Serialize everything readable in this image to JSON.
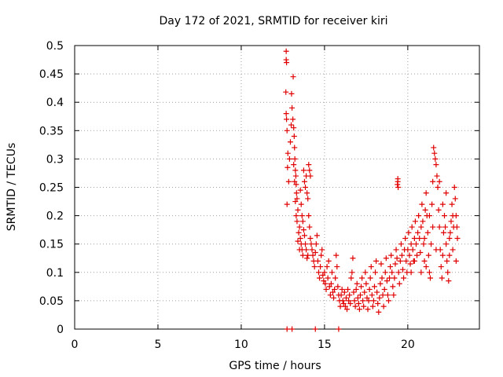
{
  "chart_data": {
    "type": "scatter",
    "title": "Day 172 of 2021, SRMTID for receiver kiri",
    "xlabel": "GPS time / hours",
    "ylabel": "SRMTID / TECUs",
    "xlim": [
      0,
      24.3
    ],
    "ylim": [
      0,
      0.5
    ],
    "x_ticks": [
      0,
      5,
      10,
      15,
      20
    ],
    "x_tick_labels": [
      "0",
      "5",
      "10",
      "15",
      "20"
    ],
    "y_ticks": [
      0,
      0.05,
      0.1,
      0.15,
      0.2,
      0.25,
      0.3,
      0.35,
      0.4,
      0.45,
      0.5
    ],
    "y_tick_labels": [
      "0",
      "0.05",
      "0.1",
      "0.15",
      "0.2",
      "0.25",
      "0.3",
      "0.35",
      "0.4",
      "0.45",
      "0.5"
    ],
    "grid": true,
    "marker": "+",
    "series": [
      {
        "color": "#e00000",
        "points": [
          [
            12.7,
            0.49
          ],
          [
            12.7,
            0.475
          ],
          [
            12.72,
            0.47
          ],
          [
            12.68,
            0.418
          ],
          [
            12.7,
            0.38
          ],
          [
            12.72,
            0.37
          ],
          [
            12.75,
            0.35
          ],
          [
            12.8,
            0.31
          ],
          [
            12.78,
            0.285
          ],
          [
            12.75,
            0.22
          ],
          [
            12.85,
            0.26
          ],
          [
            12.9,
            0.3
          ],
          [
            12.95,
            0.33
          ],
          [
            13.0,
            0.36
          ],
          [
            13.02,
            0.415
          ],
          [
            13.05,
            0.39
          ],
          [
            13.1,
            0.37
          ],
          [
            13.12,
            0.445
          ],
          [
            13.15,
            0.355
          ],
          [
            13.18,
            0.34
          ],
          [
            13.2,
            0.32
          ],
          [
            13.22,
            0.3
          ],
          [
            13.25,
            0.28
          ],
          [
            13.28,
            0.27
          ],
          [
            13.3,
            0.255
          ],
          [
            13.32,
            0.24
          ],
          [
            13.35,
            0.23
          ],
          [
            13.15,
            0.29
          ],
          [
            13.2,
            0.26
          ],
          [
            13.25,
            0.225
          ],
          [
            13.3,
            0.2
          ],
          [
            13.35,
            0.19
          ],
          [
            13.4,
            0.21
          ],
          [
            13.45,
            0.17
          ],
          [
            13.5,
            0.18
          ],
          [
            13.55,
            0.16
          ],
          [
            13.6,
            0.15
          ],
          [
            13.65,
            0.14
          ],
          [
            13.7,
            0.13
          ],
          [
            13.55,
            0.245
          ],
          [
            13.6,
            0.22
          ],
          [
            13.65,
            0.2
          ],
          [
            13.7,
            0.19
          ],
          [
            13.75,
            0.175
          ],
          [
            13.8,
            0.165
          ],
          [
            13.85,
            0.15
          ],
          [
            13.9,
            0.14
          ],
          [
            13.95,
            0.125
          ],
          [
            14.0,
            0.13
          ],
          [
            13.75,
            0.28
          ],
          [
            13.8,
            0.26
          ],
          [
            13.85,
            0.25
          ],
          [
            13.9,
            0.27
          ],
          [
            13.95,
            0.24
          ],
          [
            14.0,
            0.23
          ],
          [
            14.05,
            0.2
          ],
          [
            14.1,
            0.18
          ],
          [
            14.15,
            0.16
          ],
          [
            14.05,
            0.29
          ],
          [
            14.1,
            0.28
          ],
          [
            14.15,
            0.27
          ],
          [
            13.4,
            0.155
          ],
          [
            13.5,
            0.14
          ],
          [
            14.2,
            0.15
          ],
          [
            14.25,
            0.14
          ],
          [
            14.3,
            0.13
          ],
          [
            14.35,
            0.12
          ],
          [
            14.4,
            0.11
          ],
          [
            14.45,
            0.135
          ],
          [
            14.5,
            0.15
          ],
          [
            14.55,
            0.165
          ],
          [
            14.6,
            0.12
          ],
          [
            14.65,
            0.1
          ],
          [
            14.7,
            0.09
          ],
          [
            14.75,
            0.11
          ],
          [
            14.8,
            0.13
          ],
          [
            14.85,
            0.14
          ],
          [
            14.9,
            0.095
          ],
          [
            14.95,
            0.085
          ],
          [
            15.0,
            0.1
          ],
          [
            15.05,
            0.08
          ],
          [
            15.1,
            0.07
          ],
          [
            15.15,
            0.11
          ],
          [
            15.2,
            0.09
          ],
          [
            15.25,
            0.12
          ],
          [
            15.3,
            0.075
          ],
          [
            15.35,
            0.06
          ],
          [
            15.4,
            0.08
          ],
          [
            15.45,
            0.1
          ],
          [
            15.5,
            0.065
          ],
          [
            15.55,
            0.055
          ],
          [
            15.6,
            0.07
          ],
          [
            15.65,
            0.09
          ],
          [
            15.7,
            0.13
          ],
          [
            15.75,
            0.11
          ],
          [
            15.8,
            0.075
          ],
          [
            15.85,
            0.06
          ],
          [
            15.9,
            0.05
          ],
          [
            15.95,
            0.04
          ],
          [
            16.0,
            0.06
          ],
          [
            16.05,
            0.07
          ],
          [
            16.1,
            0.05
          ],
          [
            16.15,
            0.045
          ],
          [
            16.2,
            0.065
          ],
          [
            16.25,
            0.04
          ],
          [
            16.3,
            0.055
          ],
          [
            16.35,
            0.035
          ],
          [
            16.4,
            0.07
          ],
          [
            16.45,
            0.05
          ],
          [
            16.5,
            0.06
          ],
          [
            16.55,
            0.045
          ],
          [
            16.6,
            0.09
          ],
          [
            16.65,
            0.1
          ],
          [
            16.7,
            0.125
          ],
          [
            16.75,
            0.065
          ],
          [
            16.8,
            0.05
          ],
          [
            16.85,
            0.04
          ],
          [
            16.9,
            0.07
          ],
          [
            16.95,
            0.08
          ],
          [
            17.0,
            0.055
          ],
          [
            17.05,
            0.045
          ],
          [
            17.1,
            0.035
          ],
          [
            17.15,
            0.06
          ],
          [
            17.2,
            0.075
          ],
          [
            17.25,
            0.09
          ],
          [
            17.3,
            0.05
          ],
          [
            17.35,
            0.04
          ],
          [
            17.4,
            0.065
          ],
          [
            17.45,
            0.1
          ],
          [
            17.5,
            0.08
          ],
          [
            17.55,
            0.055
          ],
          [
            17.6,
            0.035
          ],
          [
            17.65,
            0.05
          ],
          [
            17.7,
            0.07
          ],
          [
            17.75,
            0.09
          ],
          [
            17.8,
            0.11
          ],
          [
            17.85,
            0.06
          ],
          [
            17.9,
            0.04
          ],
          [
            17.95,
            0.05
          ],
          [
            18.0,
            0.075
          ],
          [
            18.05,
            0.1
          ],
          [
            18.1,
            0.12
          ],
          [
            18.15,
            0.065
          ],
          [
            18.2,
            0.045
          ],
          [
            18.25,
            0.03
          ],
          [
            18.3,
            0.055
          ],
          [
            18.35,
            0.08
          ],
          [
            18.4,
            0.115
          ],
          [
            18.45,
            0.09
          ],
          [
            18.5,
            0.06
          ],
          [
            18.55,
            0.04
          ],
          [
            18.6,
            0.07
          ],
          [
            18.65,
            0.1
          ],
          [
            18.7,
            0.125
          ],
          [
            18.75,
            0.085
          ],
          [
            18.8,
            0.06
          ],
          [
            18.85,
            0.05
          ],
          [
            18.9,
            0.09
          ],
          [
            18.95,
            0.11
          ],
          [
            19.0,
            0.13
          ],
          [
            19.05,
            0.1
          ],
          [
            19.1,
            0.075
          ],
          [
            19.15,
            0.06
          ],
          [
            19.2,
            0.09
          ],
          [
            19.25,
            0.115
          ],
          [
            19.3,
            0.14
          ],
          [
            19.35,
            0.125
          ],
          [
            19.4,
            0.26
          ],
          [
            19.4,
            0.265
          ],
          [
            19.38,
            0.255
          ],
          [
            19.42,
            0.25
          ],
          [
            19.45,
            0.1
          ],
          [
            19.5,
            0.08
          ],
          [
            19.55,
            0.12
          ],
          [
            19.6,
            0.15
          ],
          [
            19.65,
            0.13
          ],
          [
            19.7,
            0.105
          ],
          [
            19.75,
            0.09
          ],
          [
            19.8,
            0.14
          ],
          [
            19.85,
            0.16
          ],
          [
            19.9,
            0.12
          ],
          [
            19.95,
            0.1
          ],
          [
            20.0,
            0.14
          ],
          [
            20.05,
            0.17
          ],
          [
            20.1,
            0.13
          ],
          [
            20.15,
            0.115
          ],
          [
            20.2,
            0.15
          ],
          [
            20.25,
            0.18
          ],
          [
            20.3,
            0.14
          ],
          [
            20.35,
            0.12
          ],
          [
            20.4,
            0.16
          ],
          [
            20.45,
            0.19
          ],
          [
            20.5,
            0.15
          ],
          [
            20.55,
            0.13
          ],
          [
            20.6,
            0.17
          ],
          [
            20.65,
            0.2
          ],
          [
            20.7,
            0.16
          ],
          [
            20.75,
            0.135
          ],
          [
            20.8,
            0.18
          ],
          [
            20.85,
            0.22
          ],
          [
            20.9,
            0.19
          ],
          [
            20.95,
            0.15
          ],
          [
            21.0,
            0.12
          ],
          [
            21.05,
            0.21
          ],
          [
            21.1,
            0.24
          ],
          [
            21.15,
            0.2
          ],
          [
            21.2,
            0.17
          ],
          [
            21.25,
            0.13
          ],
          [
            21.3,
            0.1
          ],
          [
            21.35,
            0.09
          ],
          [
            21.4,
            0.15
          ],
          [
            21.45,
            0.22
          ],
          [
            21.5,
            0.26
          ],
          [
            21.55,
            0.32
          ],
          [
            21.6,
            0.31
          ],
          [
            21.65,
            0.3
          ],
          [
            21.7,
            0.29
          ],
          [
            21.75,
            0.27
          ],
          [
            21.8,
            0.25
          ],
          [
            21.85,
            0.21
          ],
          [
            21.9,
            0.18
          ],
          [
            21.95,
            0.14
          ],
          [
            22.0,
            0.11
          ],
          [
            22.05,
            0.09
          ],
          [
            22.1,
            0.13
          ],
          [
            22.15,
            0.17
          ],
          [
            22.2,
            0.2
          ],
          [
            22.25,
            0.18
          ],
          [
            22.3,
            0.15
          ],
          [
            22.35,
            0.12
          ],
          [
            22.4,
            0.1
          ],
          [
            22.45,
            0.085
          ],
          [
            22.5,
            0.13
          ],
          [
            22.55,
            0.17
          ],
          [
            22.6,
            0.19
          ],
          [
            22.65,
            0.22
          ],
          [
            22.7,
            0.2
          ],
          [
            22.75,
            0.18
          ],
          [
            22.8,
            0.25
          ],
          [
            22.85,
            0.23
          ],
          [
            22.9,
            0.2
          ],
          [
            22.95,
            0.18
          ],
          [
            22.98,
            0.16
          ],
          [
            21.0,
            0.16
          ],
          [
            21.1,
            0.11
          ],
          [
            21.3,
            0.2
          ],
          [
            21.5,
            0.18
          ],
          [
            21.7,
            0.14
          ],
          [
            21.9,
            0.26
          ],
          [
            22.1,
            0.22
          ],
          [
            22.3,
            0.24
          ],
          [
            22.5,
            0.16
          ],
          [
            22.7,
            0.14
          ],
          [
            22.9,
            0.12
          ],
          [
            20.2,
            0.1
          ],
          [
            20.4,
            0.12
          ],
          [
            20.8,
            0.1
          ],
          [
            12.75,
            0.0
          ],
          [
            13.05,
            0.0
          ],
          [
            14.45,
            0.0
          ],
          [
            15.85,
            0.0
          ]
        ]
      }
    ]
  }
}
